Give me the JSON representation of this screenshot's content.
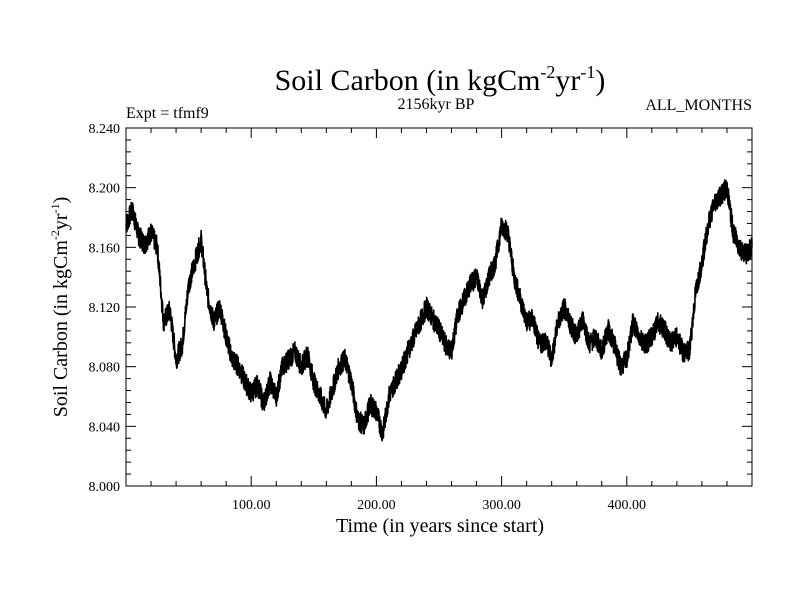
{
  "chart_data": {
    "type": "line",
    "title": {
      "base": "Soil Carbon (in kgCm",
      "sup1": "-2",
      "mid": "yr",
      "sup2": "-1",
      "end": ")"
    },
    "subtitle_left": "Expt = tfmf9",
    "subtitle_center": "2156kyr BP",
    "subtitle_right": "ALL_MONTHS",
    "xlabel": "Time (in years since start)",
    "ylabel": {
      "base": "Soil Carbon (in kgCm",
      "sup1": "-2",
      "mid": "yr",
      "sup2": "-1",
      "end": ")"
    },
    "xlim": [
      0,
      500
    ],
    "ylim": [
      8.0,
      8.24
    ],
    "x_ticks": [
      100,
      200,
      300,
      400
    ],
    "x_tick_labels": [
      "100.00",
      "200.00",
      "300.00",
      "400.00"
    ],
    "y_ticks": [
      8.0,
      8.04,
      8.08,
      8.12,
      8.16,
      8.2,
      8.24
    ],
    "y_tick_labels": [
      "8.000",
      "8.040",
      "8.080",
      "8.120",
      "8.160",
      "8.200",
      "8.240"
    ],
    "grid": false,
    "series": [
      {
        "name": "Soil Carbon",
        "color": "#000000",
        "x": [
          0,
          5,
          10,
          15,
          20,
          25,
          30,
          35,
          40,
          45,
          50,
          55,
          60,
          65,
          70,
          75,
          80,
          85,
          90,
          95,
          100,
          105,
          110,
          115,
          120,
          125,
          130,
          135,
          140,
          145,
          150,
          155,
          160,
          165,
          170,
          175,
          180,
          185,
          190,
          195,
          200,
          205,
          210,
          215,
          220,
          225,
          230,
          235,
          240,
          245,
          250,
          255,
          260,
          265,
          270,
          275,
          280,
          285,
          290,
          295,
          300,
          305,
          310,
          315,
          320,
          325,
          330,
          335,
          340,
          345,
          350,
          355,
          360,
          365,
          370,
          375,
          380,
          385,
          390,
          395,
          400,
          405,
          410,
          415,
          420,
          425,
          430,
          435,
          440,
          445,
          450,
          455,
          460,
          465,
          470,
          475,
          480,
          485,
          490,
          495,
          500
        ],
        "values": [
          8.175,
          8.185,
          8.168,
          8.162,
          8.17,
          8.16,
          8.11,
          8.118,
          8.085,
          8.095,
          8.135,
          8.15,
          8.165,
          8.128,
          8.11,
          8.12,
          8.1,
          8.085,
          8.08,
          8.07,
          8.062,
          8.068,
          8.055,
          8.07,
          8.06,
          8.08,
          8.085,
          8.09,
          8.08,
          8.088,
          8.07,
          8.06,
          8.05,
          8.065,
          8.08,
          8.085,
          8.07,
          8.045,
          8.04,
          8.055,
          8.05,
          8.035,
          8.06,
          8.07,
          8.078,
          8.09,
          8.1,
          8.11,
          8.12,
          8.112,
          8.105,
          8.095,
          8.09,
          8.115,
          8.125,
          8.135,
          8.14,
          8.125,
          8.14,
          8.15,
          8.175,
          8.17,
          8.14,
          8.125,
          8.11,
          8.112,
          8.095,
          8.098,
          8.085,
          8.11,
          8.12,
          8.108,
          8.1,
          8.112,
          8.095,
          8.1,
          8.09,
          8.105,
          8.095,
          8.08,
          8.085,
          8.11,
          8.1,
          8.095,
          8.1,
          8.11,
          8.105,
          8.095,
          8.1,
          8.09,
          8.09,
          8.13,
          8.15,
          8.175,
          8.19,
          8.195,
          8.2,
          8.17,
          8.16,
          8.155,
          8.16
        ]
      }
    ]
  }
}
